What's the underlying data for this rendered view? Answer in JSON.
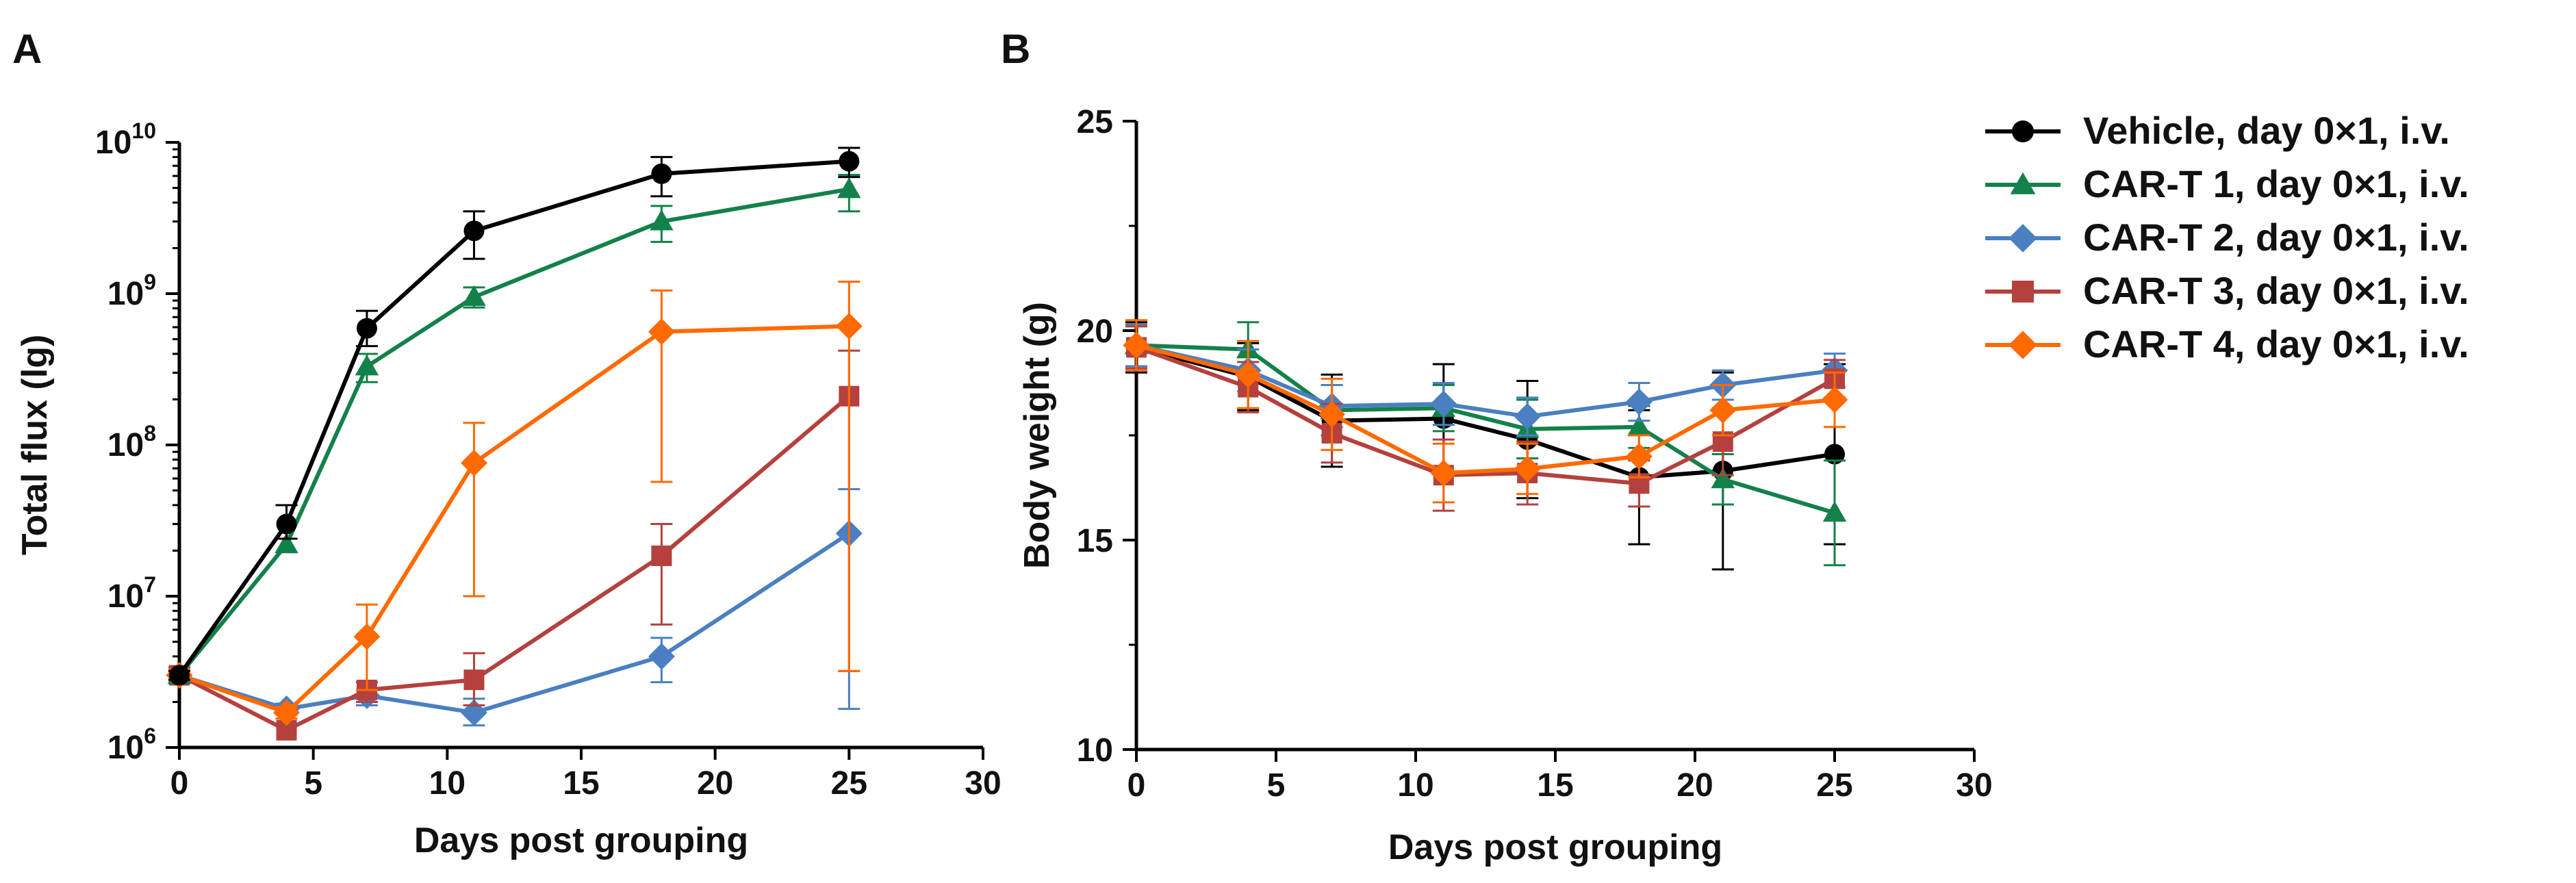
{
  "chart_data": [
    {
      "panel_label": "A",
      "type": "line",
      "yscale": "log",
      "xlabel": "Days post grouping",
      "ylabel": "Total flux (lg)",
      "xlim": [
        0,
        30
      ],
      "ylim": [
        1000000,
        10000000000
      ],
      "xticks": [
        0,
        5,
        10,
        15,
        20,
        25,
        30
      ],
      "xtick_labels": [
        "0",
        "5",
        "10",
        "15",
        "20",
        "25",
        "30"
      ],
      "yticks": [
        1000000,
        10000000,
        100000000,
        1000000000,
        10000000000
      ],
      "ytick_labels": [
        {
          "base": "10",
          "exp": "6"
        },
        {
          "base": "10",
          "exp": "7"
        },
        {
          "base": "10",
          "exp": "8"
        },
        {
          "base": "10",
          "exp": "9"
        },
        {
          "base": "10",
          "exp": "10"
        }
      ],
      "x": [
        0,
        4,
        7,
        11,
        18,
        25
      ],
      "series": [
        {
          "name": "CAR-T 2, day 0×1, i.v.",
          "color": "#4a7fc1",
          "marker": "diamond",
          "values": [
            3000000,
            1800000,
            2200000,
            1700000,
            4000000,
            26000000
          ],
          "err_upper": [
            3400000,
            1950000,
            2700000,
            2100000,
            5300000,
            51000000
          ],
          "err_lower": [
            2700000,
            1650000,
            1900000,
            1400000,
            2700000,
            1800000
          ]
        },
        {
          "name": "CAR-T 3, day 0×1, i.v.",
          "color": "#b4413e",
          "marker": "square",
          "values": [
            3000000,
            1300000,
            2400000,
            2800000,
            18500000,
            210000000
          ],
          "err_upper": [
            3300000,
            1300000,
            2700000,
            4200000,
            30000000,
            420000000
          ],
          "err_lower": [
            2700000,
            1300000,
            2000000,
            1900000,
            6500000,
            3200000
          ]
        },
        {
          "name": "CAR-T 4, day 0×1, i.v.",
          "color": "#ff6a00",
          "marker": "diamond",
          "values": [
            3000000,
            1700000,
            5400000,
            76000000,
            560000000,
            610000000
          ],
          "err_upper": [
            3300000,
            1850000,
            8800000,
            140000000,
            1050000000,
            1200000000
          ],
          "err_lower": [
            2700000,
            1550000,
            2400000,
            10000000,
            57000000,
            3200000
          ]
        },
        {
          "name": "CAR-T 1, day 0×1, i.v.",
          "color": "#13814a",
          "marker": "triangle",
          "values": [
            3000000,
            22000000,
            330000000,
            950000000,
            3000000000,
            4900000000
          ],
          "err_upper": [
            3200000,
            22000000,
            400000000,
            1100000000,
            3800000000,
            6100000000
          ],
          "err_lower": [
            2800000,
            22000000,
            260000000,
            810000000,
            2200000000,
            3500000000
          ]
        },
        {
          "name": "Vehicle, day 0×1, i.v.",
          "color": "#000000",
          "marker": "circle",
          "values": [
            3000000,
            30000000,
            590000000,
            2600000000,
            6200000000,
            7500000000
          ],
          "err_upper": [
            3200000,
            40000000,
            770000000,
            3500000000,
            8000000000,
            9200000000
          ],
          "err_lower": [
            2800000,
            24000000,
            450000000,
            1700000000,
            4400000000,
            5900000000
          ]
        }
      ]
    },
    {
      "panel_label": "B",
      "type": "line",
      "xlabel": "Days post grouping",
      "ylabel": "Body weight (g)",
      "xlim": [
        0,
        30
      ],
      "ylim": [
        10,
        25
      ],
      "xticks": [
        0,
        5,
        10,
        15,
        20,
        25,
        30
      ],
      "xtick_labels": [
        "0",
        "5",
        "10",
        "15",
        "20",
        "25",
        "30"
      ],
      "yticks": [
        10,
        15,
        20,
        25
      ],
      "ytick_labels": [
        "10",
        "15",
        "20",
        "25"
      ],
      "x": [
        0,
        4,
        7,
        11,
        14,
        18,
        21,
        25
      ],
      "series": [
        {
          "name": "Vehicle, day 0×1, i.v.",
          "color": "#000000",
          "marker": "circle",
          "values": [
            19.6,
            18.9,
            17.85,
            17.9,
            17.4,
            16.5,
            16.65,
            17.05
          ],
          "errors": [
            0.6,
            0.8,
            1.1,
            1.3,
            1.4,
            1.6,
            2.35,
            2.15
          ]
        },
        {
          "name": "CAR-T 1, day 0×1, i.v.",
          "color": "#13814a",
          "marker": "triangle",
          "values": [
            19.65,
            19.55,
            18.1,
            18.15,
            17.65,
            17.7,
            16.45,
            15.65
          ],
          "errors": [
            0.5,
            0.65,
            0.6,
            0.55,
            0.7,
            0.5,
            0.6,
            1.25
          ]
        },
        {
          "name": "CAR-T 2, day 0×1, i.v.",
          "color": "#4a7fc1",
          "marker": "diamond",
          "values": [
            19.65,
            19.05,
            18.2,
            18.25,
            17.95,
            18.3,
            18.7,
            19.05
          ],
          "errors": [
            0.5,
            0.5,
            0.5,
            0.5,
            0.45,
            0.45,
            0.35,
            0.4
          ]
        },
        {
          "name": "CAR-T 3, day 0×1, i.v.",
          "color": "#b4413e",
          "marker": "square",
          "values": [
            19.6,
            18.65,
            17.55,
            16.55,
            16.6,
            16.35,
            17.35,
            18.85
          ],
          "errors": [
            0.5,
            0.6,
            0.7,
            0.85,
            0.75,
            0.55,
            0.8,
            0.45
          ]
        },
        {
          "name": "CAR-T 4, day 0×1, i.v.",
          "color": "#ff6a00",
          "marker": "diamond",
          "values": [
            19.65,
            18.95,
            18.0,
            16.6,
            16.7,
            17.0,
            18.1,
            18.35
          ],
          "errors": [
            0.6,
            0.8,
            0.85,
            0.7,
            0.6,
            0.5,
            0.6,
            0.65
          ]
        }
      ]
    }
  ],
  "legend": [
    {
      "label": "Vehicle, day 0×1, i.v.",
      "color": "#000000",
      "marker": "circle"
    },
    {
      "label": "CAR-T 1, day 0×1, i.v.",
      "color": "#13814a",
      "marker": "triangle"
    },
    {
      "label": "CAR-T 2, day 0×1, i.v.",
      "color": "#4a7fc1",
      "marker": "diamond"
    },
    {
      "label": "CAR-T 3, day 0×1, i.v.",
      "color": "#b4413e",
      "marker": "square"
    },
    {
      "label": "CAR-T 4, day 0×1, i.v.",
      "color": "#ff6a00",
      "marker": "diamond"
    }
  ]
}
